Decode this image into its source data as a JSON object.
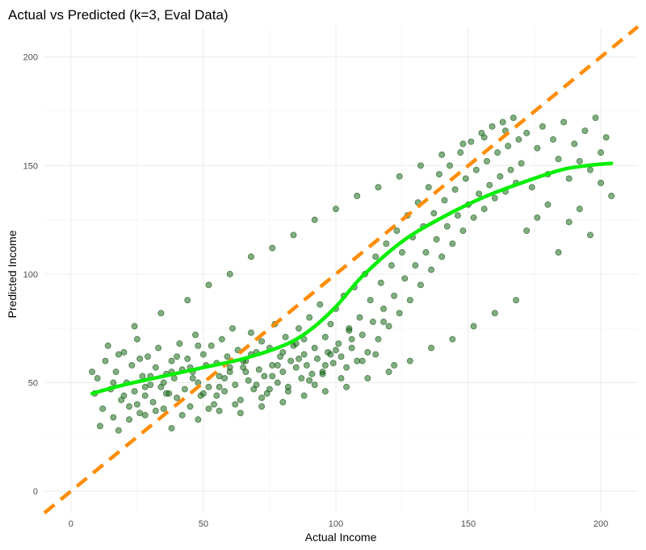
{
  "chart_data": {
    "type": "scatter",
    "title": "Actual vs Predicted (k=3, Eval Data)",
    "xlabel": "Actual Income",
    "ylabel": "Predicted Income",
    "xlim": [
      -10,
      214
    ],
    "ylim": [
      -10,
      214
    ],
    "x_ticks": [
      0,
      50,
      100,
      150,
      200
    ],
    "y_ticks": [
      0,
      50,
      100,
      150,
      200
    ],
    "grid": true,
    "point_color": "#1a6b1a",
    "point_opacity": 0.55,
    "reference_line": {
      "label": "y = x",
      "slope": 1,
      "intercept": 0,
      "color": "#ff8c00",
      "style": "dashed"
    },
    "smooth_line": {
      "color": "#00ee00",
      "x": [
        8,
        20,
        35,
        50,
        65,
        80,
        90,
        100,
        110,
        125,
        140,
        155,
        170,
        185,
        195,
        204
      ],
      "y": [
        45,
        49,
        53,
        57,
        61,
        67,
        74,
        85,
        99,
        115,
        126,
        135,
        142,
        148,
        150,
        151
      ]
    },
    "points": [
      [
        9,
        45
      ],
      [
        10,
        52
      ],
      [
        12,
        38
      ],
      [
        13,
        60
      ],
      [
        15,
        47
      ],
      [
        16,
        34
      ],
      [
        17,
        55
      ],
      [
        19,
        42
      ],
      [
        20,
        64
      ],
      [
        21,
        50
      ],
      [
        22,
        39
      ],
      [
        23,
        58
      ],
      [
        24,
        46
      ],
      [
        25,
        70
      ],
      [
        26,
        36
      ],
      [
        27,
        53
      ],
      [
        28,
        44
      ],
      [
        29,
        62
      ],
      [
        30,
        49
      ],
      [
        31,
        41
      ],
      [
        32,
        57
      ],
      [
        33,
        66
      ],
      [
        34,
        48
      ],
      [
        35,
        38
      ],
      [
        36,
        54
      ],
      [
        37,
        45
      ],
      [
        38,
        60
      ],
      [
        39,
        52
      ],
      [
        40,
        43
      ],
      [
        41,
        68
      ],
      [
        42,
        56
      ],
      [
        43,
        47
      ],
      [
        44,
        61
      ],
      [
        45,
        39
      ],
      [
        46,
        55
      ],
      [
        47,
        72
      ],
      [
        48,
        50
      ],
      [
        49,
        44
      ],
      [
        50,
        63
      ],
      [
        51,
        58
      ],
      [
        52,
        48
      ],
      [
        53,
        67
      ],
      [
        54,
        40
      ],
      [
        55,
        59
      ],
      [
        56,
        53
      ],
      [
        57,
        70
      ],
      [
        58,
        46
      ],
      [
        59,
        62
      ],
      [
        60,
        55
      ],
      [
        61,
        75
      ],
      [
        62,
        49
      ],
      [
        63,
        65
      ],
      [
        64,
        42
      ],
      [
        65,
        57
      ],
      [
        66,
        60
      ],
      [
        67,
        51
      ],
      [
        68,
        73
      ],
      [
        69,
        47
      ],
      [
        70,
        64
      ],
      [
        71,
        56
      ],
      [
        72,
        69
      ],
      [
        73,
        53
      ],
      [
        74,
        45
      ],
      [
        75,
        66
      ],
      [
        76,
        58
      ],
      [
        77,
        77
      ],
      [
        78,
        50
      ],
      [
        79,
        62
      ],
      [
        80,
        55
      ],
      [
        81,
        71
      ],
      [
        82,
        48
      ],
      [
        83,
        60
      ],
      [
        84,
        67
      ],
      [
        85,
        57
      ],
      [
        86,
        75
      ],
      [
        87,
        52
      ],
      [
        88,
        63
      ],
      [
        89,
        58
      ],
      [
        90,
        80
      ],
      [
        91,
        54
      ],
      [
        92,
        66
      ],
      [
        93,
        61
      ],
      [
        94,
        86
      ],
      [
        95,
        55
      ],
      [
        96,
        71
      ],
      [
        97,
        64
      ],
      [
        98,
        77
      ],
      [
        99,
        59
      ],
      [
        100,
        84
      ],
      [
        101,
        68
      ],
      [
        102,
        62
      ],
      [
        103,
        90
      ],
      [
        104,
        57
      ],
      [
        105,
        75
      ],
      [
        106,
        66
      ],
      [
        107,
        94
      ],
      [
        108,
        60
      ],
      [
        109,
        80
      ],
      [
        110,
        72
      ],
      [
        111,
        100
      ],
      [
        112,
        64
      ],
      [
        113,
        88
      ],
      [
        114,
        78
      ],
      [
        115,
        108
      ],
      [
        116,
        70
      ],
      [
        117,
        96
      ],
      [
        118,
        84
      ],
      [
        119,
        114
      ],
      [
        120,
        76
      ],
      [
        121,
        104
      ],
      [
        122,
        90
      ],
      [
        123,
        120
      ],
      [
        124,
        82
      ],
      [
        125,
        110
      ],
      [
        126,
        98
      ],
      [
        127,
        127
      ],
      [
        128,
        88
      ],
      [
        129,
        117
      ],
      [
        130,
        104
      ],
      [
        131,
        133
      ],
      [
        132,
        95
      ],
      [
        133,
        122
      ],
      [
        134,
        110
      ],
      [
        135,
        140
      ],
      [
        136,
        102
      ],
      [
        137,
        128
      ],
      [
        138,
        116
      ],
      [
        139,
        146
      ],
      [
        140,
        108
      ],
      [
        141,
        134
      ],
      [
        142,
        122
      ],
      [
        143,
        150
      ],
      [
        144,
        114
      ],
      [
        145,
        139
      ],
      [
        146,
        127
      ],
      [
        147,
        156
      ],
      [
        148,
        120
      ],
      [
        149,
        144
      ],
      [
        150,
        132
      ],
      [
        151,
        161
      ],
      [
        152,
        126
      ],
      [
        153,
        148
      ],
      [
        154,
        137
      ],
      [
        155,
        165
      ],
      [
        156,
        130
      ],
      [
        157,
        152
      ],
      [
        158,
        141
      ],
      [
        159,
        168
      ],
      [
        160,
        135
      ],
      [
        161,
        156
      ],
      [
        162,
        145
      ],
      [
        163,
        170
      ],
      [
        164,
        138
      ],
      [
        165,
        159
      ],
      [
        166,
        148
      ],
      [
        167,
        172
      ],
      [
        168,
        142
      ],
      [
        169,
        162
      ],
      [
        170,
        151
      ],
      [
        172,
        165
      ],
      [
        174,
        140
      ],
      [
        176,
        158
      ],
      [
        178,
        168
      ],
      [
        180,
        146
      ],
      [
        182,
        162
      ],
      [
        184,
        153
      ],
      [
        186,
        170
      ],
      [
        188,
        144
      ],
      [
        190,
        160
      ],
      [
        192,
        152
      ],
      [
        194,
        166
      ],
      [
        196,
        148
      ],
      [
        198,
        172
      ],
      [
        200,
        156
      ],
      [
        202,
        163
      ],
      [
        8,
        55
      ],
      [
        11,
        30
      ],
      [
        14,
        67
      ],
      [
        18,
        28
      ],
      [
        24,
        76
      ],
      [
        28,
        35
      ],
      [
        34,
        82
      ],
      [
        38,
        29
      ],
      [
        44,
        88
      ],
      [
        48,
        33
      ],
      [
        52,
        95
      ],
      [
        56,
        37
      ],
      [
        60,
        100
      ],
      [
        64,
        36
      ],
      [
        68,
        108
      ],
      [
        72,
        39
      ],
      [
        76,
        112
      ],
      [
        80,
        41
      ],
      [
        84,
        118
      ],
      [
        88,
        44
      ],
      [
        92,
        125
      ],
      [
        96,
        46
      ],
      [
        100,
        130
      ],
      [
        104,
        48
      ],
      [
        108,
        136
      ],
      [
        112,
        52
      ],
      [
        116,
        140
      ],
      [
        120,
        55
      ],
      [
        124,
        145
      ],
      [
        128,
        60
      ],
      [
        132,
        150
      ],
      [
        136,
        66
      ],
      [
        140,
        155
      ],
      [
        144,
        70
      ],
      [
        148,
        160
      ],
      [
        152,
        76
      ],
      [
        156,
        163
      ],
      [
        160,
        82
      ],
      [
        164,
        166
      ],
      [
        168,
        88
      ],
      [
        172,
        120
      ],
      [
        176,
        126
      ],
      [
        180,
        132
      ],
      [
        184,
        110
      ],
      [
        188,
        124
      ],
      [
        192,
        130
      ],
      [
        196,
        118
      ],
      [
        200,
        142
      ],
      [
        204,
        136
      ],
      [
        16,
        50
      ],
      [
        26,
        61
      ],
      [
        36,
        45
      ],
      [
        46,
        52
      ],
      [
        56,
        48
      ],
      [
        66,
        55
      ],
      [
        76,
        53
      ],
      [
        86,
        61
      ],
      [
        96,
        58
      ],
      [
        106,
        70
      ],
      [
        20,
        44
      ],
      [
        30,
        53
      ],
      [
        40,
        62
      ],
      [
        50,
        45
      ],
      [
        60,
        57
      ],
      [
        70,
        49
      ],
      [
        80,
        64
      ],
      [
        90,
        51
      ],
      [
        100,
        65
      ],
      [
        110,
        60
      ],
      [
        25,
        40
      ],
      [
        35,
        50
      ],
      [
        45,
        57
      ],
      [
        55,
        44
      ],
      [
        65,
        60
      ],
      [
        75,
        47
      ],
      [
        85,
        68
      ],
      [
        95,
        54
      ],
      [
        105,
        74
      ],
      [
        115,
        63
      ],
      [
        18,
        63
      ],
      [
        28,
        48
      ],
      [
        38,
        55
      ],
      [
        48,
        67
      ],
      [
        58,
        52
      ],
      [
        68,
        63
      ],
      [
        78,
        58
      ],
      [
        88,
        70
      ],
      [
        98,
        63
      ],
      [
        118,
        78
      ],
      [
        22,
        33
      ],
      [
        32,
        37
      ],
      [
        42,
        35
      ],
      [
        52,
        38
      ],
      [
        62,
        40
      ],
      [
        72,
        43
      ],
      [
        82,
        46
      ],
      [
        92,
        49
      ],
      [
        102,
        52
      ],
      [
        122,
        58
      ]
    ]
  }
}
